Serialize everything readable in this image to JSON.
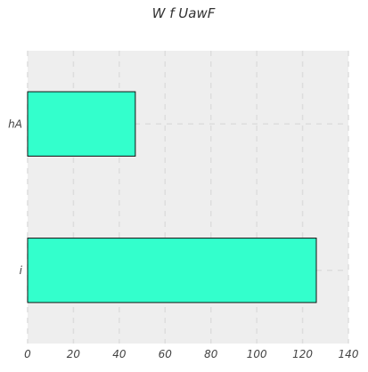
{
  "chart_data": {
    "type": "bar",
    "orientation": "horizontal",
    "title": "W f UawF",
    "xlabel": "",
    "ylabel": "",
    "categories": [
      "hA",
      "i"
    ],
    "values": [
      47,
      126
    ],
    "xlim": [
      0,
      140
    ],
    "x_ticks": [
      0,
      20,
      40,
      60,
      80,
      100,
      120,
      140
    ],
    "grid": true,
    "colors": {
      "bar_fill": "#33ffcc",
      "bar_edge": "#111111",
      "plot_background": "#eeeeee",
      "grid_line": "#dddddd"
    }
  }
}
